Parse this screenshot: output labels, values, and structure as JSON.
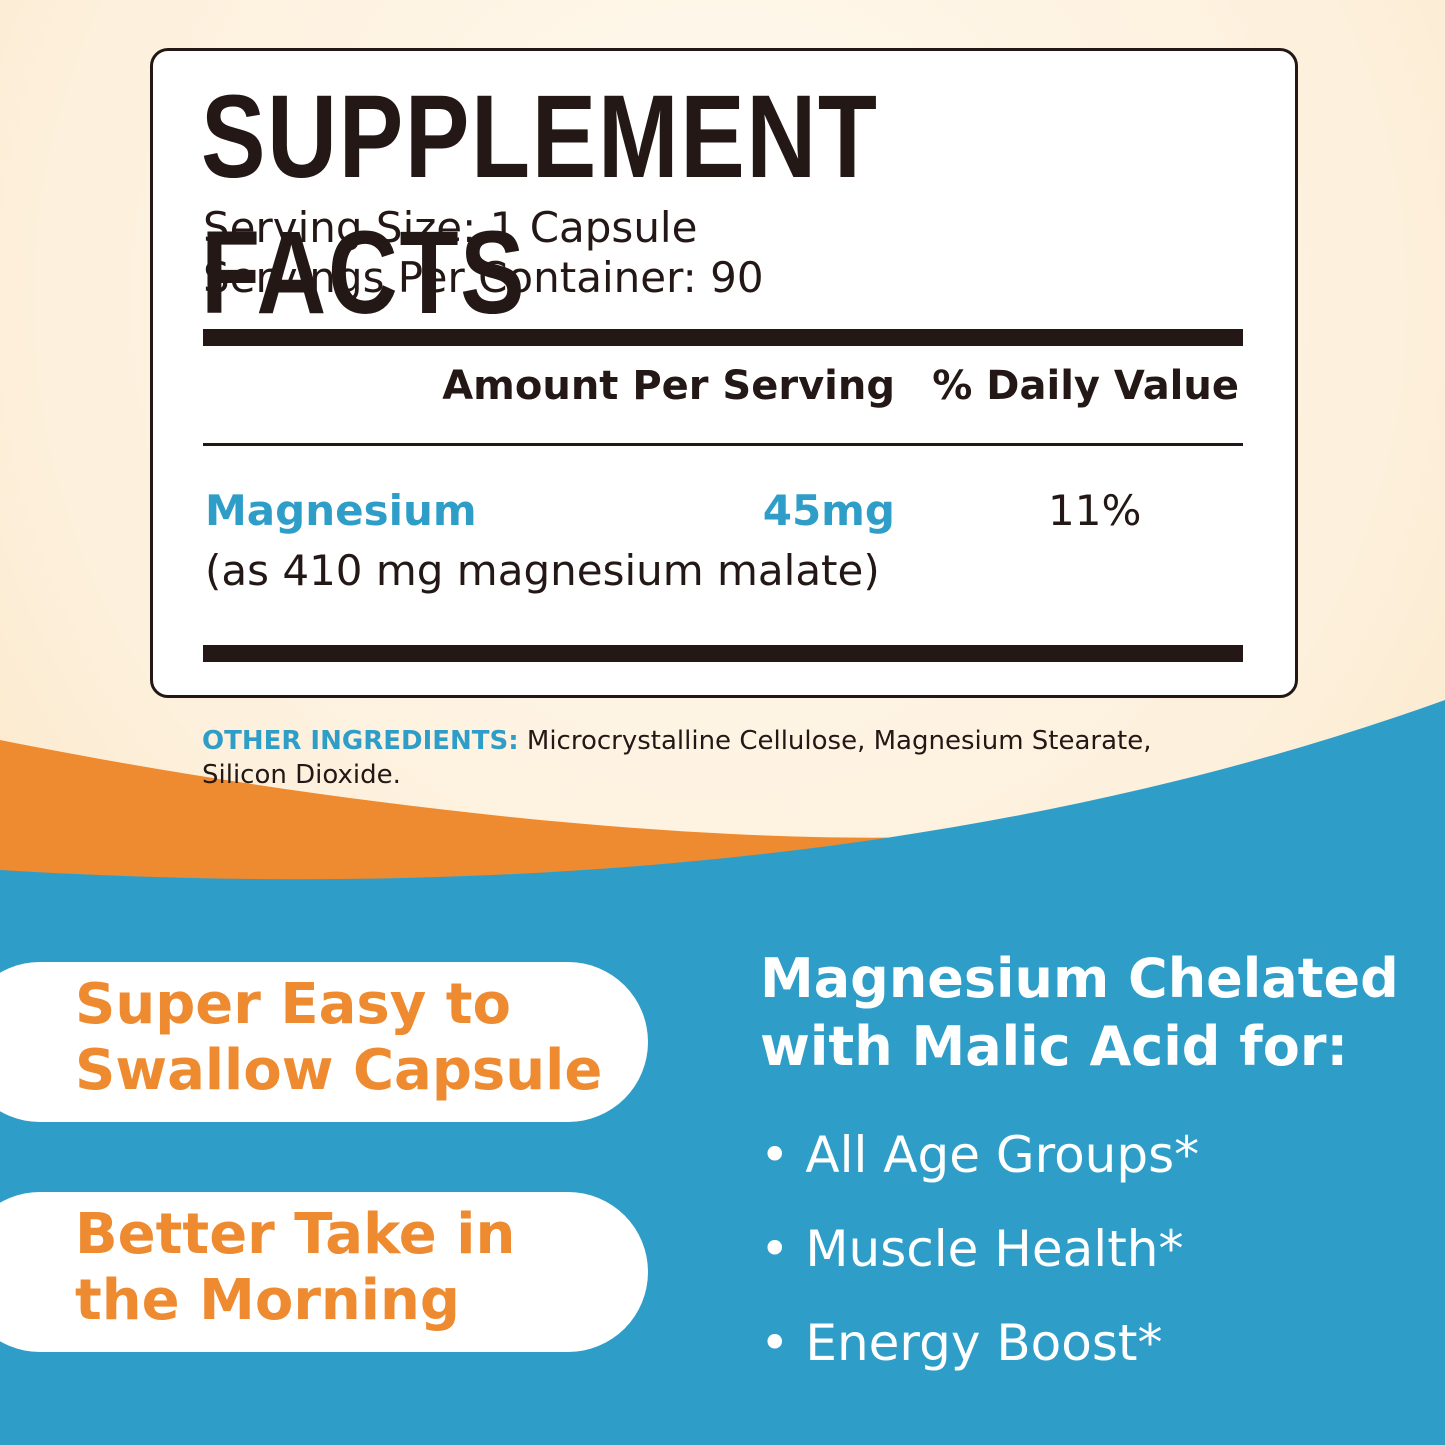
{
  "facts": {
    "title": "SUPPLEMENT FACTS",
    "serving_size": "Serving Size: 1 Capsule",
    "servings_per_container": "Servings Per Container: 90",
    "amount_header": "Amount Per Serving",
    "dv_header": "% Daily Value",
    "ingredient": {
      "name": "Magnesium",
      "amount": "45mg",
      "dv": "11%",
      "note": "(as 410 mg magnesium malate)"
    }
  },
  "other_ingredients": {
    "label": "OTHER INGREDIENTS:",
    "text": "Microcrystalline Cellulose, Magnesium Stearate,",
    "text2": "Silicon Dioxide."
  },
  "pills": [
    {
      "line1": "Super Easy to",
      "line2": "Swallow Capsule"
    },
    {
      "line1": "Better Take in",
      "line2": "the Morning"
    }
  ],
  "benefits": {
    "heading1": "Magnesium Chelated",
    "heading2": "with Malic Acid for:",
    "items": [
      "All Age Groups*",
      "Muscle Health*",
      "Energy Boost*"
    ]
  }
}
